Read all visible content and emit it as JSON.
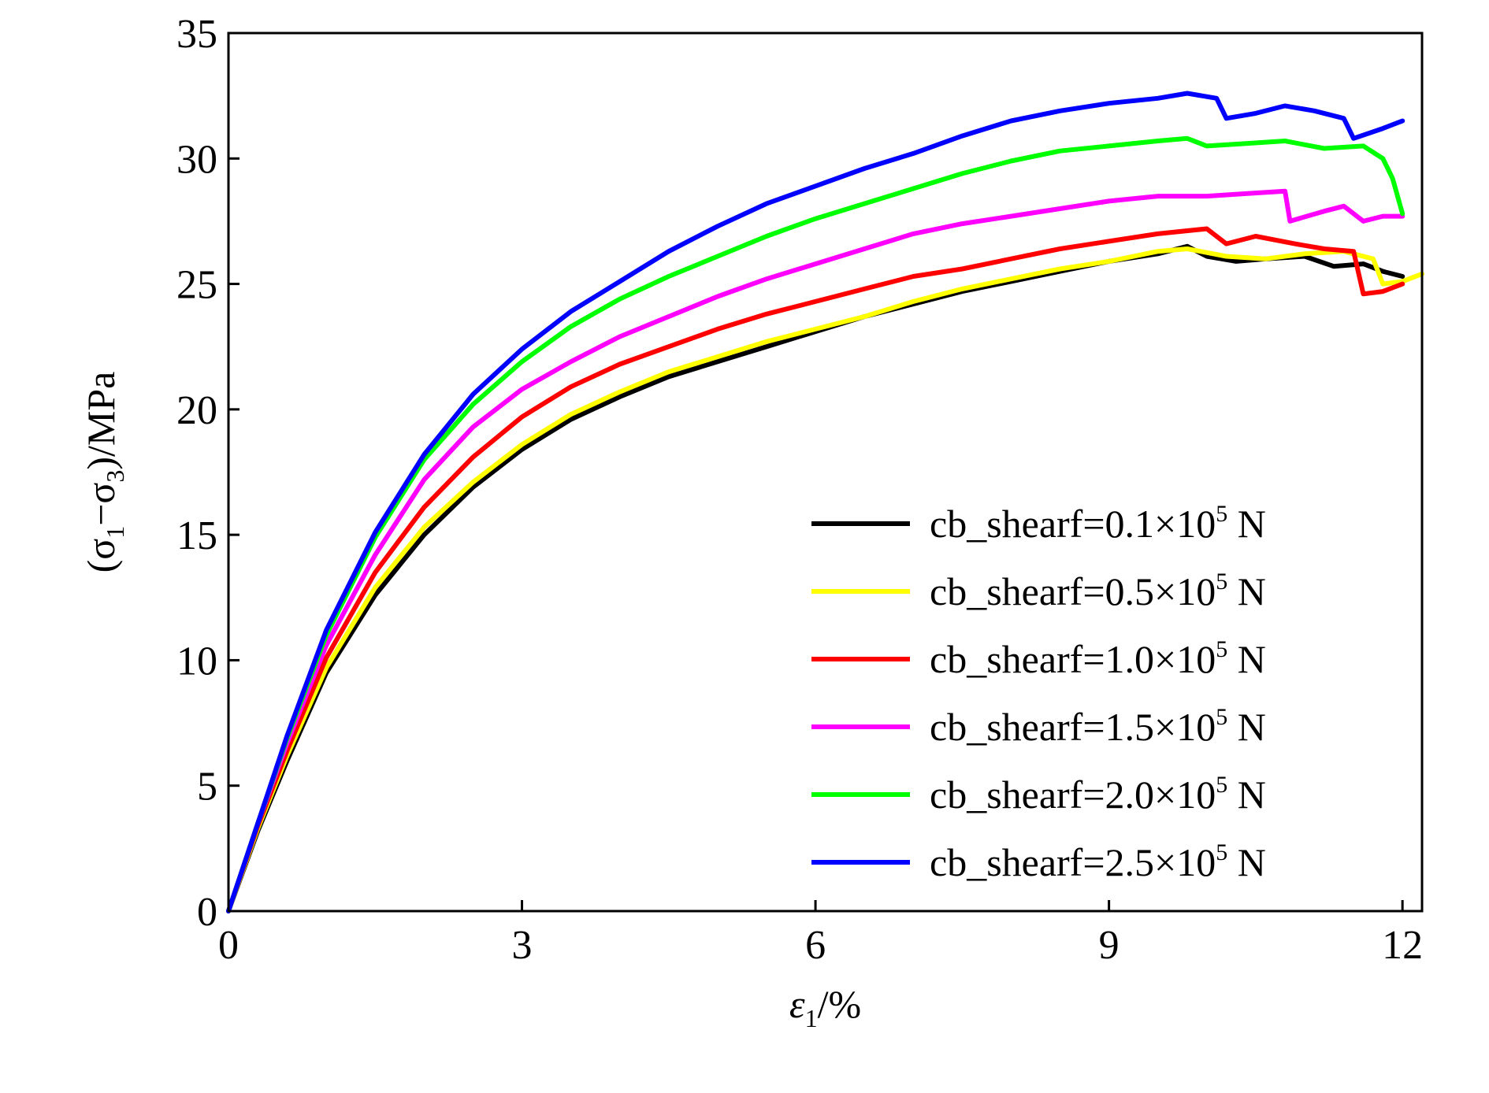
{
  "chart_data": {
    "type": "line",
    "title": "",
    "xlabel": {
      "main": "ε",
      "sub": "1",
      "tail": "/%"
    },
    "ylabel": {
      "p1": "(σ",
      "s1": "1",
      "p2": "−σ",
      "s2": "3",
      "p3": ")/MPa"
    },
    "xlim": [
      0,
      12.2
    ],
    "ylim": [
      0,
      35
    ],
    "xticks": [
      0,
      3,
      6,
      9,
      12
    ],
    "yticks": [
      0,
      5,
      10,
      15,
      20,
      25,
      30,
      35
    ],
    "grid": false,
    "legend_position": "lower-right",
    "series": [
      {
        "name": "cb_shearf=0.1×10",
        "sup": "5",
        "unit": " N",
        "color": "#000000",
        "x": [
          0,
          0.3,
          0.6,
          1.0,
          1.5,
          2.0,
          2.5,
          3.0,
          3.5,
          4.0,
          4.5,
          5.0,
          5.5,
          6.0,
          6.5,
          7.0,
          7.5,
          8.0,
          8.5,
          9.0,
          9.5,
          9.8,
          10.0,
          10.3,
          10.6,
          11.0,
          11.3,
          11.6,
          11.8,
          12.0
        ],
        "y": [
          0,
          3.2,
          6.0,
          9.5,
          12.6,
          15.0,
          16.9,
          18.4,
          19.6,
          20.5,
          21.3,
          21.9,
          22.5,
          23.1,
          23.7,
          24.2,
          24.7,
          25.1,
          25.5,
          25.9,
          26.2,
          26.5,
          26.1,
          25.9,
          26.0,
          26.1,
          25.7,
          25.8,
          25.5,
          25.3
        ]
      },
      {
        "name": "cb_shearf=0.5×10",
        "sup": "5",
        "unit": " N",
        "color": "#ffff00",
        "x": [
          0,
          0.3,
          0.6,
          1.0,
          1.5,
          2.0,
          2.5,
          3.0,
          3.5,
          4.0,
          4.5,
          5.0,
          5.5,
          6.0,
          6.5,
          7.0,
          7.5,
          8.0,
          8.5,
          9.0,
          9.5,
          9.8,
          10.2,
          10.6,
          11.0,
          11.4,
          11.7,
          11.8,
          12.0,
          12.2
        ],
        "y": [
          0,
          3.3,
          6.2,
          9.7,
          12.9,
          15.3,
          17.1,
          18.6,
          19.8,
          20.7,
          21.5,
          22.1,
          22.7,
          23.2,
          23.7,
          24.3,
          24.8,
          25.2,
          25.6,
          25.9,
          26.3,
          26.4,
          26.1,
          26.0,
          26.2,
          26.3,
          26.0,
          25.0,
          25.1,
          25.4
        ]
      },
      {
        "name": "cb_shearf=1.0×10",
        "sup": "5",
        "unit": " N",
        "color": "#ff0000",
        "x": [
          0,
          0.3,
          0.6,
          1.0,
          1.5,
          2.0,
          2.5,
          3.0,
          3.5,
          4.0,
          4.5,
          5.0,
          5.5,
          6.0,
          6.5,
          7.0,
          7.5,
          8.0,
          8.5,
          9.0,
          9.5,
          10.0,
          10.2,
          10.5,
          10.9,
          11.2,
          11.5,
          11.6,
          11.8,
          12.0
        ],
        "y": [
          0,
          3.4,
          6.4,
          10.1,
          13.5,
          16.1,
          18.1,
          19.7,
          20.9,
          21.8,
          22.5,
          23.2,
          23.8,
          24.3,
          24.8,
          25.3,
          25.6,
          26.0,
          26.4,
          26.7,
          27.0,
          27.2,
          26.6,
          26.9,
          26.6,
          26.4,
          26.3,
          24.6,
          24.7,
          25.0
        ]
      },
      {
        "name": "cb_shearf=1.5×10",
        "sup": "5",
        "unit": " N",
        "color": "#ff00ff",
        "x": [
          0,
          0.3,
          0.6,
          1.0,
          1.5,
          2.0,
          2.5,
          3.0,
          3.5,
          4.0,
          4.5,
          5.0,
          5.5,
          6.0,
          6.5,
          7.0,
          7.5,
          8.0,
          8.5,
          9.0,
          9.5,
          10.0,
          10.4,
          10.8,
          10.85,
          11.2,
          11.4,
          11.6,
          11.8,
          12.0
        ],
        "y": [
          0,
          3.5,
          6.7,
          10.6,
          14.2,
          17.2,
          19.3,
          20.8,
          21.9,
          22.9,
          23.7,
          24.5,
          25.2,
          25.8,
          26.4,
          27.0,
          27.4,
          27.7,
          28.0,
          28.3,
          28.5,
          28.5,
          28.6,
          28.7,
          27.5,
          27.9,
          28.1,
          27.5,
          27.7,
          27.7
        ]
      },
      {
        "name": "cb_shearf=2.0×10",
        "sup": "5",
        "unit": " N",
        "color": "#00ff00",
        "x": [
          0,
          0.3,
          0.6,
          1.0,
          1.5,
          2.0,
          2.5,
          3.0,
          3.5,
          4.0,
          4.5,
          5.0,
          5.5,
          6.0,
          6.5,
          7.0,
          7.5,
          8.0,
          8.5,
          9.0,
          9.5,
          9.8,
          10.0,
          10.4,
          10.8,
          11.2,
          11.6,
          11.8,
          11.9,
          12.0
        ],
        "y": [
          0,
          3.5,
          6.9,
          11.0,
          14.9,
          18.0,
          20.2,
          21.9,
          23.3,
          24.4,
          25.3,
          26.1,
          26.9,
          27.6,
          28.2,
          28.8,
          29.4,
          29.9,
          30.3,
          30.5,
          30.7,
          30.8,
          30.5,
          30.6,
          30.7,
          30.4,
          30.5,
          30.0,
          29.2,
          27.8
        ]
      },
      {
        "name": "cb_shearf=2.5×10",
        "sup": "5",
        "unit": " N",
        "color": "#0000ff",
        "x": [
          0,
          0.3,
          0.6,
          1.0,
          1.5,
          2.0,
          2.5,
          3.0,
          3.5,
          4.0,
          4.5,
          5.0,
          5.5,
          6.0,
          6.5,
          7.0,
          7.5,
          8.0,
          8.5,
          9.0,
          9.5,
          9.8,
          10.1,
          10.2,
          10.5,
          10.8,
          11.1,
          11.4,
          11.5,
          11.8,
          12.0
        ],
        "y": [
          0,
          3.5,
          7.0,
          11.2,
          15.1,
          18.2,
          20.6,
          22.4,
          23.9,
          25.1,
          26.3,
          27.3,
          28.2,
          28.9,
          29.6,
          30.2,
          30.9,
          31.5,
          31.9,
          32.2,
          32.4,
          32.6,
          32.4,
          31.6,
          31.8,
          32.1,
          31.9,
          31.6,
          30.8,
          31.2,
          31.5
        ]
      }
    ]
  }
}
